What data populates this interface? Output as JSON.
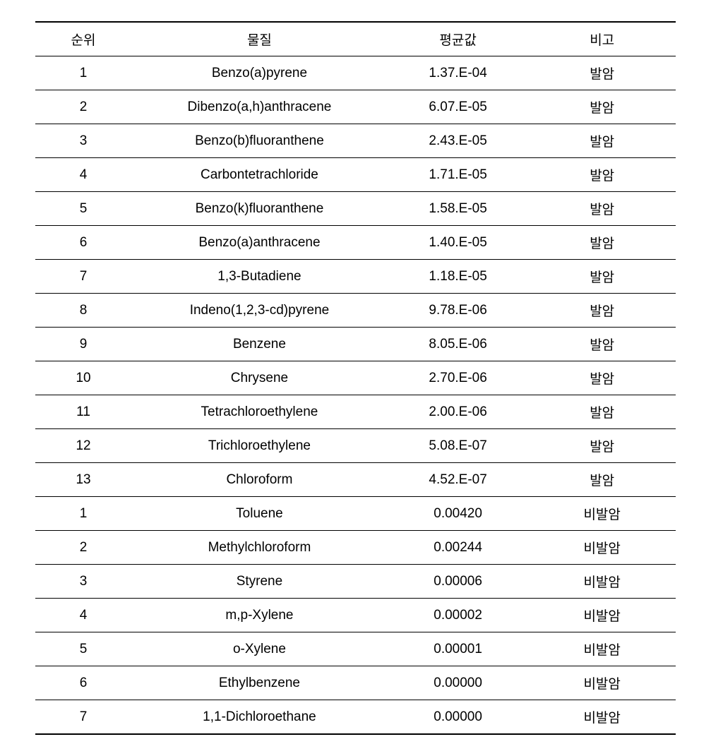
{
  "table": {
    "headers": {
      "rank": "순위",
      "substance": "물질",
      "value": "평균값",
      "note": "비고"
    },
    "rows": [
      {
        "rank": "1",
        "substance": "Benzo(a)pyrene",
        "value": "1.37.E-04",
        "note": "발암"
      },
      {
        "rank": "2",
        "substance": "Dibenzo(a,h)anthracene",
        "value": "6.07.E-05",
        "note": "발암"
      },
      {
        "rank": "3",
        "substance": "Benzo(b)fluoranthene",
        "value": "2.43.E-05",
        "note": "발암"
      },
      {
        "rank": "4",
        "substance": "Carbontetrachloride",
        "value": "1.71.E-05",
        "note": "발암"
      },
      {
        "rank": "5",
        "substance": "Benzo(k)fluoranthene",
        "value": "1.58.E-05",
        "note": "발암"
      },
      {
        "rank": "6",
        "substance": "Benzo(a)anthracene",
        "value": "1.40.E-05",
        "note": "발암"
      },
      {
        "rank": "7",
        "substance": "1,3-Butadiene",
        "value": "1.18.E-05",
        "note": "발암"
      },
      {
        "rank": "8",
        "substance": "Indeno(1,2,3-cd)pyrene",
        "value": "9.78.E-06",
        "note": "발암"
      },
      {
        "rank": "9",
        "substance": "Benzene",
        "value": "8.05.E-06",
        "note": "발암"
      },
      {
        "rank": "10",
        "substance": "Chrysene",
        "value": "2.70.E-06",
        "note": "발암"
      },
      {
        "rank": "11",
        "substance": "Tetrachloroethylene",
        "value": "2.00.E-06",
        "note": "발암"
      },
      {
        "rank": "12",
        "substance": "Trichloroethylene",
        "value": "5.08.E-07",
        "note": "발암"
      },
      {
        "rank": "13",
        "substance": "Chloroform",
        "value": "4.52.E-07",
        "note": "발암"
      },
      {
        "rank": "1",
        "substance": "Toluene",
        "value": "0.00420",
        "note": "비발암"
      },
      {
        "rank": "2",
        "substance": "Methylchloroform",
        "value": "0.00244",
        "note": "비발암"
      },
      {
        "rank": "3",
        "substance": "Styrene",
        "value": "0.00006",
        "note": "비발암"
      },
      {
        "rank": "4",
        "substance": "m,p-Xylene",
        "value": "0.00002",
        "note": "비발암"
      },
      {
        "rank": "5",
        "substance": "o-Xylene",
        "value": "0.00001",
        "note": "비발암"
      },
      {
        "rank": "6",
        "substance": "Ethylbenzene",
        "value": "0.00000",
        "note": "비발암"
      },
      {
        "rank": "7",
        "substance": "1,1-Dichloroethane",
        "value": "0.00000",
        "note": "비발암"
      }
    ],
    "styling": {
      "background_color": "#ffffff",
      "text_color": "#000000",
      "border_color": "#000000",
      "header_border_top_width": 2,
      "header_border_bottom_width": 1,
      "row_border_width": 1,
      "last_row_border_width": 2,
      "font_size": 19,
      "cell_padding": "10px 8px",
      "column_widths": {
        "rank": "15%",
        "substance": "40%",
        "value": "22%",
        "note": "23%"
      }
    }
  }
}
